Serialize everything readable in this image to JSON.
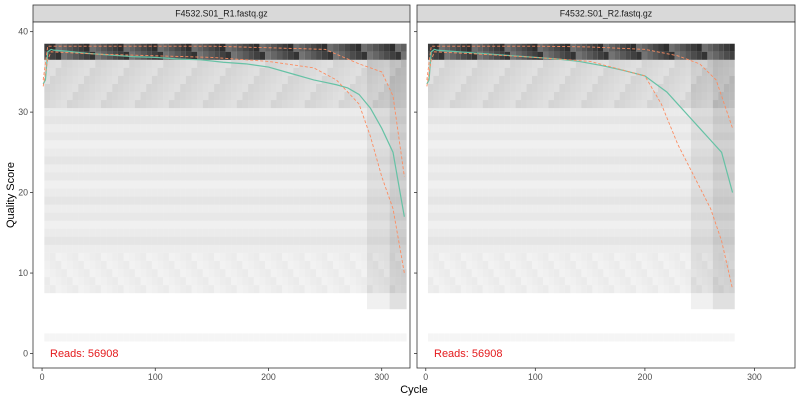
{
  "figure": {
    "xlabel": "Cycle",
    "ylabel": "Quality Score"
  },
  "colors": {
    "mean_line": "#66c2a5",
    "quantile_lines": "#fc8d62",
    "reads_text": "#e41a1c",
    "strip_fill": "#d9d9d9"
  },
  "chart_data": [
    {
      "type": "line",
      "title": "F4532.S01_R1.fastq.gz",
      "reads_label": "Reads:  56908",
      "xlabel": "Cycle",
      "ylabel": "Quality Score",
      "xlim": [
        -8,
        325
      ],
      "ylim": [
        -1.8,
        41.2
      ],
      "x_ticks": [
        0,
        100,
        200,
        300
      ],
      "y_ticks": [
        0,
        10,
        20,
        30,
        40
      ],
      "grid": false,
      "series": [
        {
          "role": "mean",
          "x": [
            1,
            3,
            5,
            8,
            10,
            20,
            40,
            60,
            80,
            100,
            120,
            140,
            160,
            180,
            200,
            220,
            240,
            250,
            260,
            270,
            280,
            290,
            300,
            310,
            320
          ],
          "y": [
            33.5,
            34,
            37.5,
            37.8,
            37.7,
            37.6,
            37.3,
            37.1,
            36.9,
            36.8,
            36.6,
            36.5,
            36.2,
            36,
            35.6,
            34.8,
            34,
            33.7,
            33.4,
            33,
            32.2,
            30.5,
            28,
            25,
            17
          ]
        },
        {
          "role": "quantile-upper",
          "x": [
            1,
            5,
            8,
            50,
            100,
            150,
            200,
            250,
            280,
            300,
            310,
            320
          ],
          "y": [
            34,
            38.2,
            38.2,
            38.2,
            38.2,
            38.2,
            38,
            37.8,
            36,
            35,
            32,
            22
          ]
        },
        {
          "role": "quantile-lower",
          "x": [
            1,
            5,
            8,
            50,
            100,
            150,
            200,
            240,
            260,
            280,
            290,
            300,
            310,
            320
          ],
          "y": [
            33.2,
            36.5,
            37.5,
            37.2,
            37,
            36.8,
            36.3,
            35.5,
            34,
            31,
            27,
            22,
            18,
            10
          ]
        }
      ]
    },
    {
      "type": "line",
      "title": "F4532.S01_R2.fastq.gz",
      "reads_label": "Reads:  56908",
      "xlabel": "Cycle",
      "ylabel": "Quality Score",
      "xlim": [
        -8,
        337
      ],
      "ylim": [
        -1.8,
        41.2
      ],
      "x_ticks": [
        0,
        100,
        200,
        300
      ],
      "y_ticks": [
        0,
        10,
        20,
        30,
        40
      ],
      "grid": false,
      "series": [
        {
          "role": "mean",
          "x": [
            1,
            3,
            5,
            8,
            10,
            20,
            40,
            60,
            80,
            100,
            120,
            140,
            160,
            180,
            200,
            210,
            220,
            230,
            240,
            250,
            260,
            270,
            280
          ],
          "y": [
            33.5,
            34,
            37.5,
            37.8,
            37.7,
            37.6,
            37.4,
            37.2,
            37,
            36.8,
            36.6,
            36.3,
            35.8,
            35.2,
            34.5,
            33.5,
            32.5,
            31,
            29.5,
            28,
            26.5,
            25,
            20
          ]
        },
        {
          "role": "quantile-upper",
          "x": [
            1,
            5,
            8,
            50,
            100,
            150,
            200,
            230,
            250,
            265,
            280
          ],
          "y": [
            34,
            38.2,
            38.2,
            38.2,
            38.2,
            38.1,
            37.8,
            37,
            36,
            34,
            28
          ]
        },
        {
          "role": "quantile-lower",
          "x": [
            1,
            5,
            8,
            50,
            100,
            150,
            200,
            215,
            230,
            245,
            260,
            270,
            280
          ],
          "y": [
            33.2,
            36.5,
            37.5,
            37.2,
            36.8,
            36.3,
            34.5,
            31,
            26,
            22,
            18,
            14,
            8
          ]
        }
      ]
    }
  ]
}
